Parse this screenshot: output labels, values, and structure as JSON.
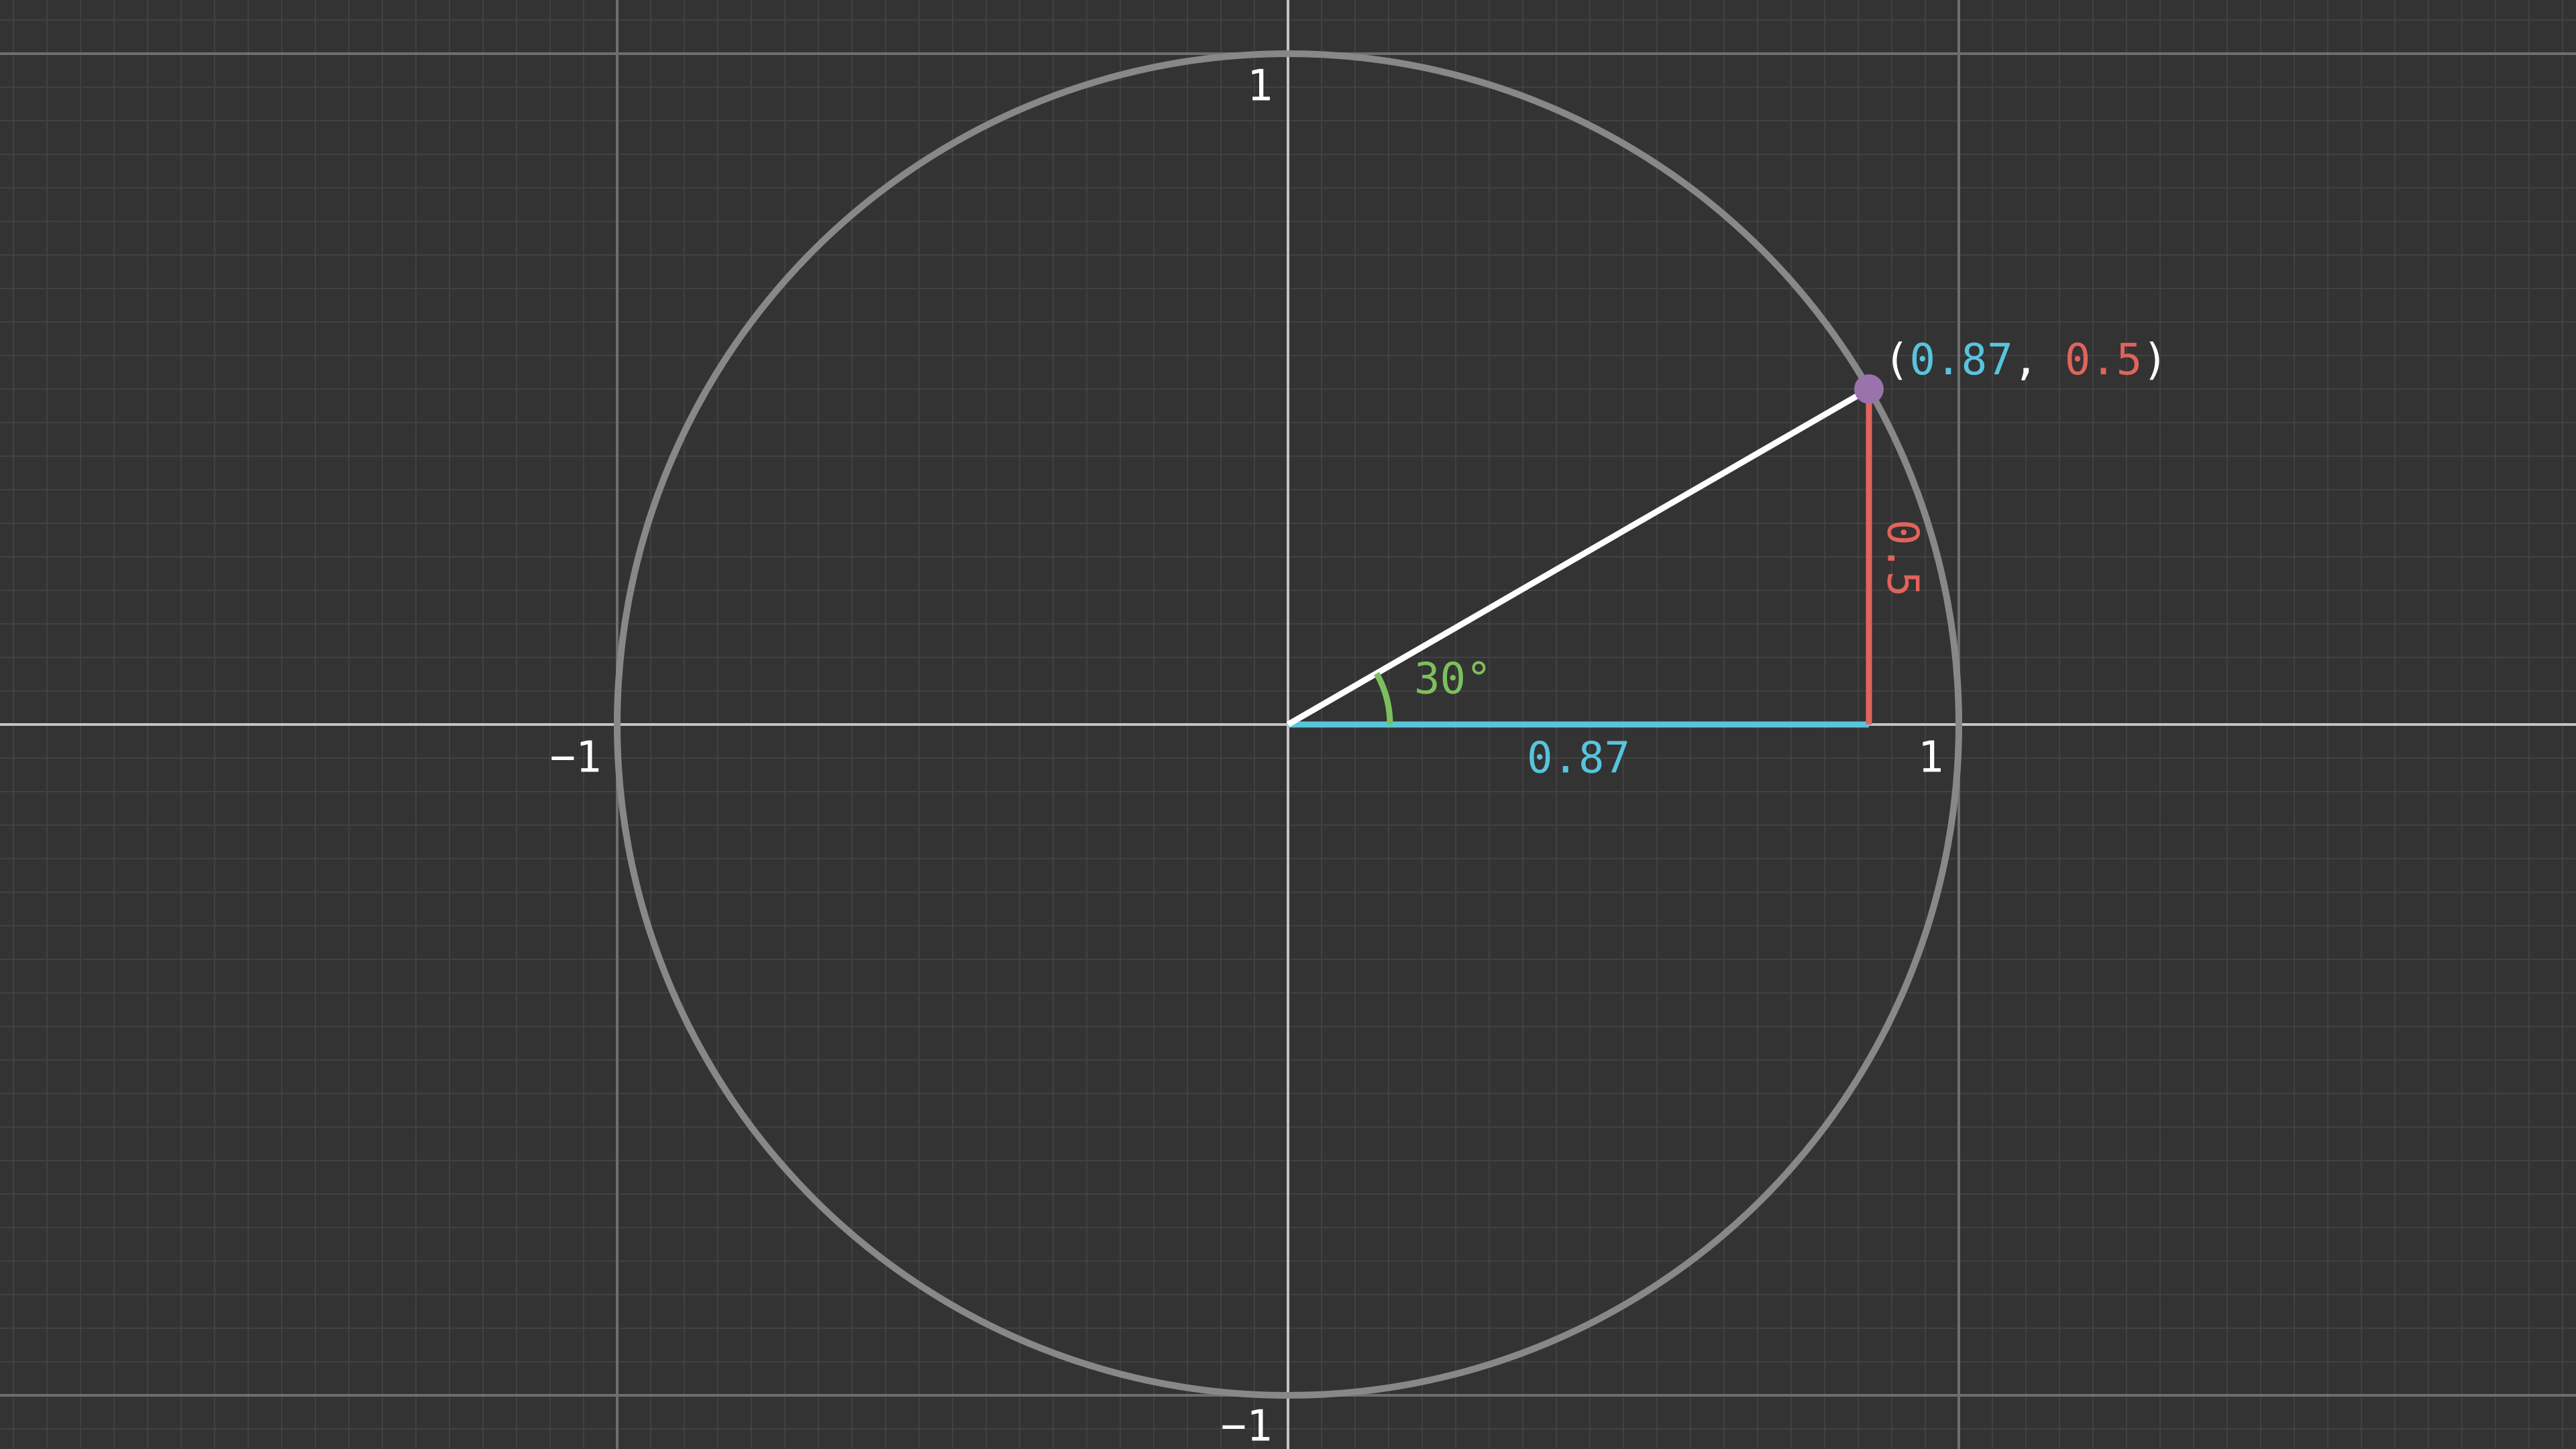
{
  "axis_labels": {
    "y_top": "1",
    "y_bottom": "−1",
    "x_left": "−1",
    "x_right": "1"
  },
  "angle_label": "30°",
  "cos_label": "0.87",
  "sin_label": "0.5",
  "point_label": {
    "open": "(",
    "x": "0.87",
    "separator": ", ",
    "y": "0.5",
    "close": ")"
  }
}
